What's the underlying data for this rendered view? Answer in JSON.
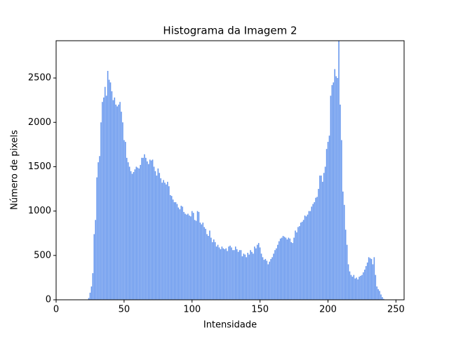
{
  "chart_data": {
    "type": "bar",
    "title": "Histograma da Imagem 2",
    "x_label": "Intensidade",
    "y_label": "Número de pixels",
    "color": "#6495ed",
    "x": [
      24,
      25,
      26,
      27,
      28,
      29,
      30,
      31,
      32,
      33,
      34,
      35,
      36,
      37,
      38,
      39,
      40,
      41,
      42,
      43,
      44,
      45,
      46,
      47,
      48,
      49,
      50,
      51,
      52,
      53,
      54,
      55,
      56,
      57,
      58,
      59,
      60,
      61,
      62,
      63,
      64,
      65,
      66,
      67,
      68,
      69,
      70,
      71,
      72,
      73,
      74,
      75,
      76,
      77,
      78,
      79,
      80,
      81,
      82,
      83,
      84,
      85,
      86,
      87,
      88,
      89,
      90,
      91,
      92,
      93,
      94,
      95,
      96,
      97,
      98,
      99,
      100,
      101,
      102,
      103,
      104,
      105,
      106,
      107,
      108,
      109,
      110,
      111,
      112,
      113,
      114,
      115,
      116,
      117,
      118,
      119,
      120,
      121,
      122,
      123,
      124,
      125,
      126,
      127,
      128,
      129,
      130,
      131,
      132,
      133,
      134,
      135,
      136,
      137,
      138,
      139,
      140,
      141,
      142,
      143,
      144,
      145,
      146,
      147,
      148,
      149,
      150,
      151,
      152,
      153,
      154,
      155,
      156,
      157,
      158,
      159,
      160,
      161,
      162,
      163,
      164,
      165,
      166,
      167,
      168,
      169,
      170,
      171,
      172,
      173,
      174,
      175,
      176,
      177,
      178,
      179,
      180,
      181,
      182,
      183,
      184,
      185,
      186,
      187,
      188,
      189,
      190,
      191,
      192,
      193,
      194,
      195,
      196,
      197,
      198,
      199,
      200,
      201,
      202,
      203,
      204,
      205,
      206,
      207,
      208,
      209,
      210,
      211,
      212,
      213,
      214,
      215,
      216,
      217,
      218,
      219,
      220,
      221,
      222,
      223,
      224,
      225,
      226,
      227,
      228,
      229,
      230,
      231,
      232,
      233,
      234,
      235,
      236,
      237,
      238,
      239,
      240,
      241
    ],
    "values": [
      20,
      80,
      150,
      300,
      740,
      900,
      1380,
      1550,
      1620,
      2000,
      2230,
      2280,
      2400,
      2300,
      2580,
      2480,
      2450,
      2350,
      2250,
      2280,
      2200,
      2180,
      2200,
      2230,
      2120,
      2000,
      1800,
      1780,
      1600,
      1550,
      1500,
      1450,
      1420,
      1440,
      1470,
      1500,
      1490,
      1480,
      1520,
      1600,
      1600,
      1640,
      1600,
      1560,
      1530,
      1580,
      1570,
      1580,
      1500,
      1450,
      1400,
      1480,
      1430,
      1370,
      1320,
      1350,
      1320,
      1300,
      1330,
      1280,
      1180,
      1170,
      1130,
      1100,
      1100,
      1080,
      1040,
      1020,
      1060,
      1050,
      990,
      970,
      960,
      970,
      950,
      940,
      1000,
      980,
      900,
      890,
      1000,
      990,
      870,
      850,
      870,
      820,
      800,
      740,
      720,
      780,
      700,
      650,
      680,
      650,
      600,
      620,
      590,
      570,
      600,
      580,
      570,
      580,
      550,
      600,
      610,
      590,
      560,
      560,
      600,
      570,
      540,
      560,
      560,
      490,
      520,
      510,
      480,
      530,
      510,
      560,
      540,
      520,
      600,
      580,
      620,
      640,
      590,
      520,
      480,
      450,
      460,
      440,
      400,
      430,
      460,
      480,
      520,
      560,
      580,
      620,
      660,
      690,
      700,
      720,
      710,
      700,
      680,
      700,
      690,
      650,
      640,
      700,
      780,
      760,
      820,
      830,
      870,
      880,
      900,
      950,
      940,
      960,
      1000,
      1000,
      1050,
      1080,
      1100,
      1150,
      1160,
      1250,
      1400,
      1400,
      1330,
      1430,
      1500,
      1700,
      1780,
      1850,
      2300,
      2420,
      2450,
      2600,
      2520,
      2500,
      3000,
      2200,
      1800,
      1220,
      1070,
      790,
      620,
      400,
      320,
      280,
      260,
      280,
      240,
      250,
      230,
      260,
      270,
      280,
      310,
      340,
      380,
      420,
      480,
      470,
      460,
      400,
      480,
      280,
      150,
      120,
      100,
      60,
      30,
      10
    ],
    "xlim": [
      0,
      256
    ],
    "xticks": [
      0,
      50,
      100,
      150,
      200,
      250
    ],
    "ylim": [
      0,
      2920
    ],
    "yticks": [
      0,
      500,
      1000,
      1500,
      2000,
      2500
    ]
  }
}
